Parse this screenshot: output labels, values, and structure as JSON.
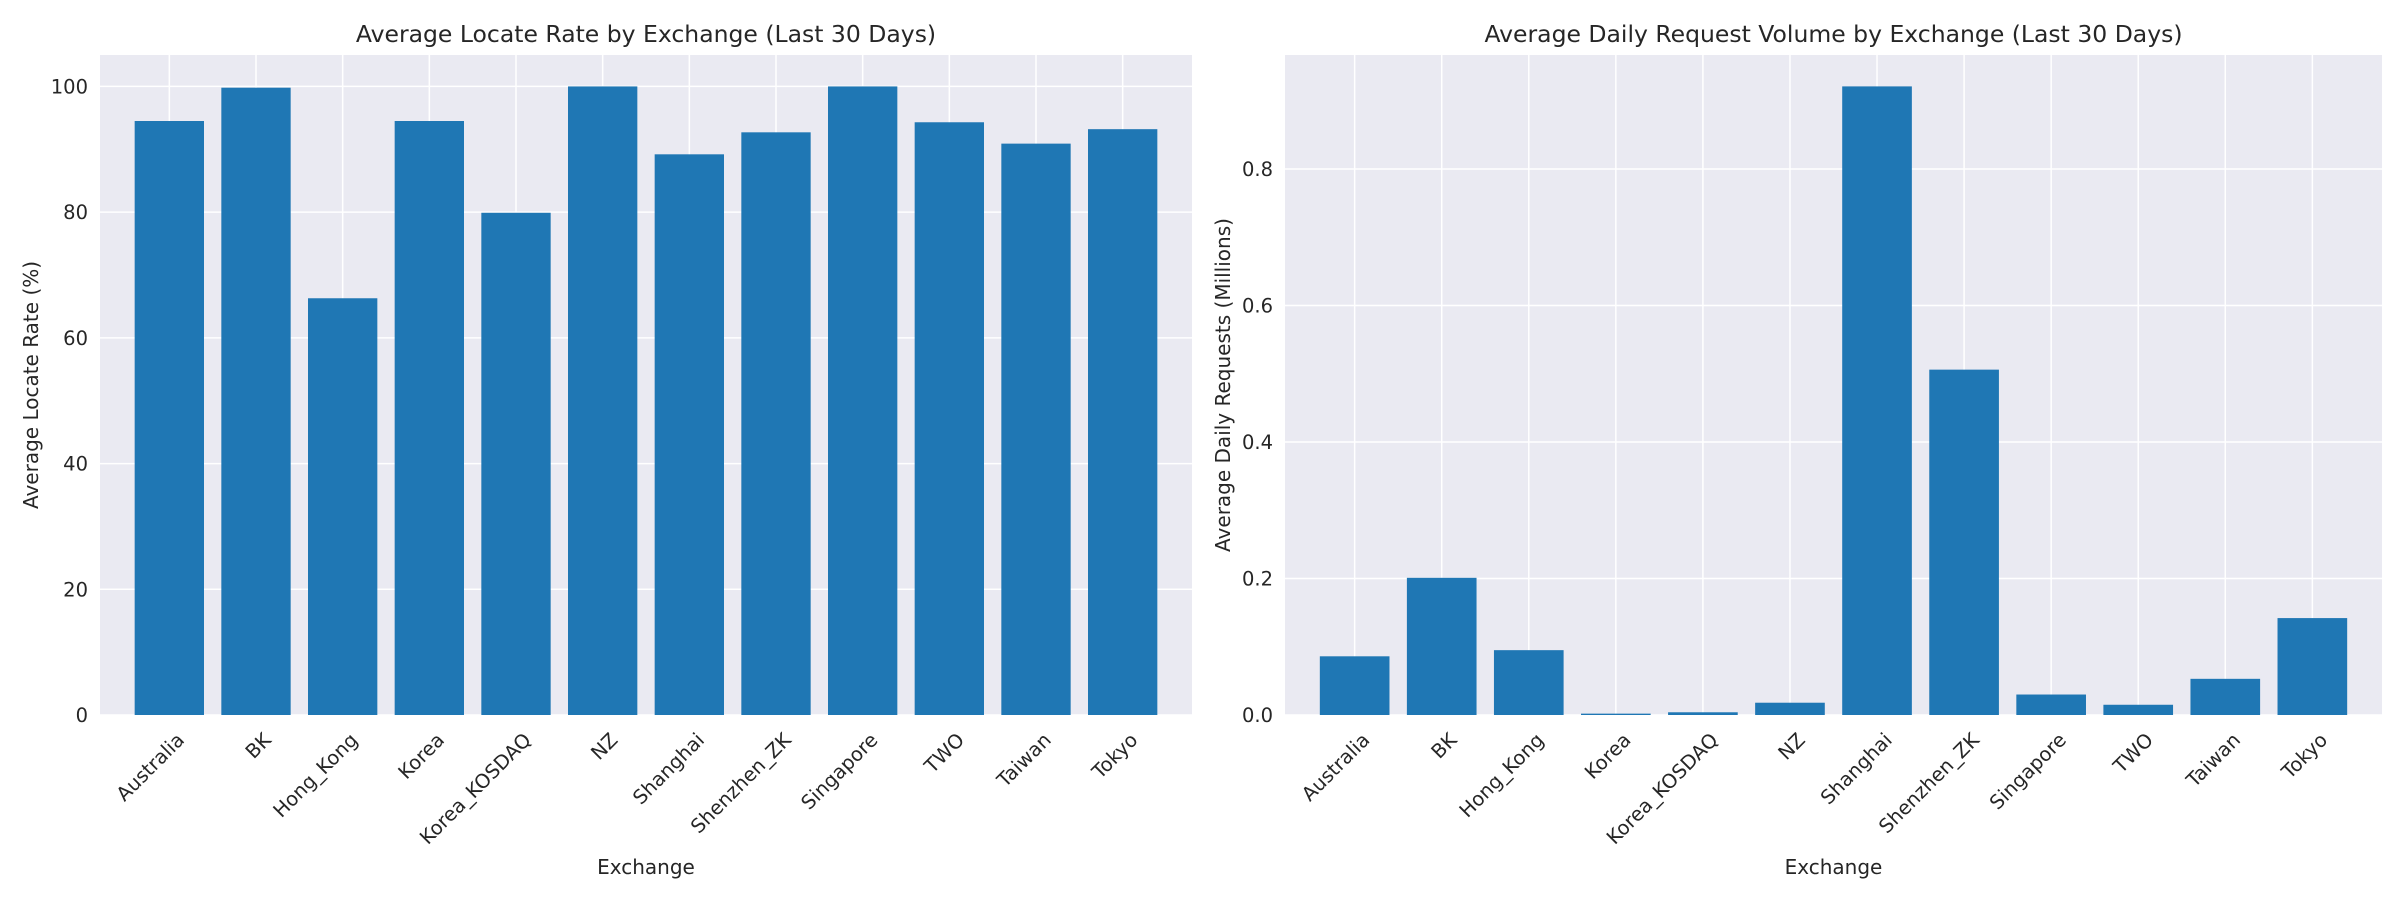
{
  "colors": {
    "background": "#eaeaf2",
    "bar": "#1f77b4",
    "grid": "#ffffff",
    "text": "#262626"
  },
  "chart_data": [
    {
      "type": "bar",
      "title": "Average Locate Rate by Exchange (Last 30 Days)",
      "xlabel": "Exchange",
      "ylabel": "Average Locate Rate (%)",
      "categories": [
        "Australia",
        "BK",
        "Hong_Kong",
        "Korea",
        "Korea_KOSDAQ",
        "NZ",
        "Shanghai",
        "Shenzhen_ZK",
        "Singapore",
        "TWO",
        "Taiwan",
        "Tokyo"
      ],
      "values": [
        94.5,
        99.8,
        66.3,
        94.5,
        79.9,
        100.0,
        89.2,
        92.7,
        100.0,
        94.3,
        90.9,
        93.2
      ],
      "ylim": [
        0,
        105
      ],
      "yticks": [
        0,
        20,
        40,
        60,
        80,
        100
      ],
      "ytick_labels": [
        "0",
        "20",
        "40",
        "60",
        "80",
        "100"
      ],
      "grid": true,
      "legend": "none"
    },
    {
      "type": "bar",
      "title": "Average Daily Request Volume by Exchange (Last 30 Days)",
      "xlabel": "Exchange",
      "ylabel": "Average Daily Requests (Millions)",
      "categories": [
        "Australia",
        "BK",
        "Hong_Kong",
        "Korea",
        "Korea_KOSDAQ",
        "NZ",
        "Shanghai",
        "Shenzhen_ZK",
        "Singapore",
        "TWO",
        "Taiwan",
        "Tokyo"
      ],
      "values": [
        0.086,
        0.201,
        0.095,
        0.002,
        0.004,
        0.018,
        0.921,
        0.506,
        0.03,
        0.015,
        0.053,
        0.142
      ],
      "ylim": [
        0,
        0.967
      ],
      "yticks": [
        0,
        0.2,
        0.4,
        0.6,
        0.8
      ],
      "ytick_labels": [
        "0.0",
        "0.2",
        "0.4",
        "0.6",
        "0.8"
      ],
      "grid": true,
      "legend": "none"
    }
  ]
}
